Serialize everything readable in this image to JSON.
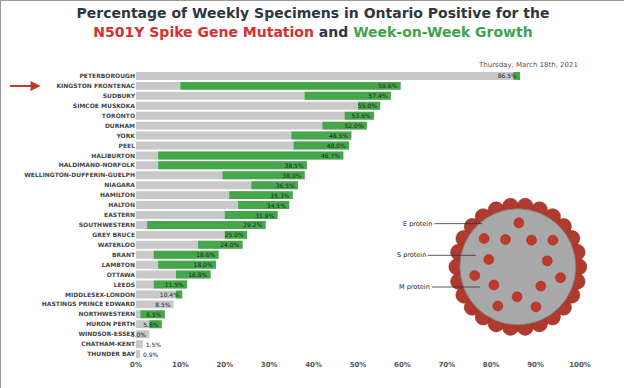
{
  "chart_data": {
    "type": "bar",
    "orientation": "horizontal",
    "title": [
      {
        "text": "Percentage of Weekly Specimens in Ontario Positive for the",
        "color": "#2f3640"
      },
      {
        "text": "N501Y Spike Gene Mutation",
        "color": "#d63031"
      },
      {
        "text": " and ",
        "color": "#2f3640"
      },
      {
        "text": "Week-on-Week Growth",
        "color": "#3fa34d"
      }
    ],
    "subtitle": "Thursday, March 18th, 2021",
    "annotations": [
      "E protein",
      "S protein",
      "M protein"
    ],
    "categories": [
      "PETERBOROUGH",
      "KINGSTON FRONTENAC",
      "SUDBURY",
      "SIMCOE MUSKOKA",
      "TORONTO",
      "DURHAM",
      "YORK",
      "PEEL",
      "HALIBURTON",
      "HALDIMAND-NORFOLK",
      "WELLINGTON-DUFFERIN-GUELPH",
      "NIAGARA",
      "HAMILTON",
      "HALTON",
      "EASTERN",
      "SOUTHWESTERN",
      "GREY BRUCE",
      "WATERLOO",
      "BRANT",
      "LAMBTON",
      "OTTAWA",
      "LEEDS",
      "MIDDLESEX-LONDON",
      "HASTINGS PRINCE EDWARD",
      "NORTHWESTERN",
      "HURON PERTH",
      "WINDSOR-ESSEX",
      "CHATHAM-KENT",
      "THUNDER BAY"
    ],
    "series": [
      {
        "name": "N501Y Spike Gene Mutation",
        "color": "#c9c9c9",
        "values": [
          86.5,
          59.6,
          57.4,
          55.0,
          53.6,
          52.0,
          48.5,
          48.0,
          46.7,
          38.5,
          38.0,
          36.5,
          35.3,
          34.5,
          31.9,
          29.2,
          25.0,
          24.0,
          18.6,
          18.0,
          16.8,
          11.5,
          10.4,
          8.5,
          6.5,
          5.8,
          3.0,
          1.5,
          0.9
        ],
        "value_labels": [
          "86.5%",
          "59.6%",
          "57.4%",
          "55.0%",
          "53.6%",
          "52.0%",
          "48.5%",
          "48.0%",
          "46.7%",
          "38.5%",
          "38.0%",
          "36.5%",
          "35.3%",
          "34.5%",
          "31.9%",
          "29.2%",
          "25.0%",
          "24.0%",
          "18.6%",
          "18.0%",
          "16.8%",
          "11.5%",
          "10.4%",
          "8.5%",
          "6.5%",
          "5.8%",
          "3.0%",
          "1.5%",
          "0.9%"
        ]
      },
      {
        "name": "Week-on-Week Growth",
        "color": "#44a84a",
        "base": [
          85.0,
          10.0,
          38.0,
          50.0,
          47.0,
          42.0,
          35.0,
          35.5,
          5.0,
          5.0,
          19.5,
          26.0,
          21.0,
          23.0,
          20.0,
          2.5,
          20.0,
          14.0,
          4.0,
          5.0,
          9.0,
          4.0,
          9.0,
          null,
          1.0,
          3.0,
          null,
          null,
          null
        ],
        "values": [
          1.5,
          49.6,
          19.4,
          5.0,
          6.6,
          10.0,
          13.5,
          12.5,
          41.7,
          33.5,
          18.5,
          10.5,
          14.3,
          11.5,
          11.9,
          26.7,
          5.0,
          10.0,
          14.6,
          13.0,
          7.8,
          7.5,
          1.4,
          null,
          5.5,
          2.8,
          null,
          null,
          null
        ]
      }
    ],
    "data_labels": true,
    "grid": false,
    "xlim": [
      0,
      100
    ],
    "xticks": [
      {
        "value": 0,
        "label": "0%"
      },
      {
        "value": 10,
        "label": "10%"
      },
      {
        "value": 20,
        "label": "20%"
      },
      {
        "value": 30,
        "label": "30%"
      },
      {
        "value": 40,
        "label": "40%"
      },
      {
        "value": 50,
        "label": "50%"
      },
      {
        "value": 60,
        "label": "60%"
      },
      {
        "value": 70,
        "label": "70%"
      },
      {
        "value": 80,
        "label": "80%"
      },
      {
        "value": 90,
        "label": "90%"
      },
      {
        "value": 100,
        "label": "100%"
      }
    ]
  }
}
